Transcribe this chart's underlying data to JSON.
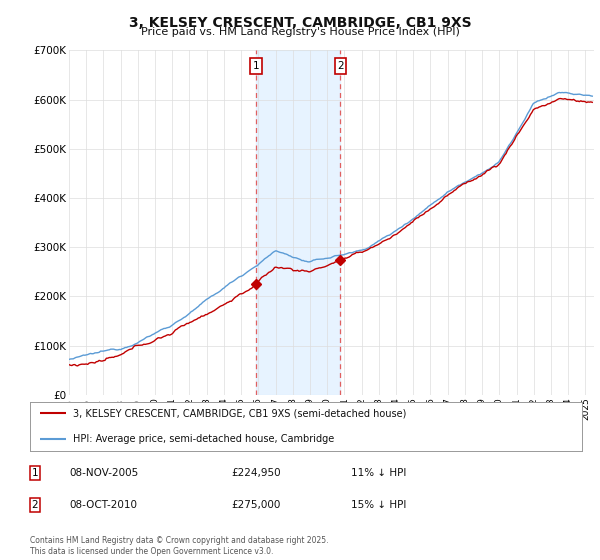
{
  "title": "3, KELSEY CRESCENT, CAMBRIDGE, CB1 9XS",
  "subtitle": "Price paid vs. HM Land Registry's House Price Index (HPI)",
  "ylim": [
    0,
    700000
  ],
  "yticks": [
    0,
    100000,
    200000,
    300000,
    400000,
    500000,
    600000,
    700000
  ],
  "ytick_labels": [
    "£0",
    "£100K",
    "£200K",
    "£300K",
    "£400K",
    "£500K",
    "£600K",
    "£700K"
  ],
  "xlim_start": 1995.0,
  "xlim_end": 2025.5,
  "hpi_color": "#5b9bd5",
  "price_color": "#c00000",
  "sale1_date": 2005.86,
  "sale1_price": 224950,
  "sale2_date": 2010.77,
  "sale2_price": 275000,
  "vline_color": "#e06060",
  "span_color": "#ddeeff",
  "legend_line1": "3, KELSEY CRESCENT, CAMBRIDGE, CB1 9XS (semi-detached house)",
  "legend_line2": "HPI: Average price, semi-detached house, Cambridge",
  "footnote": "Contains HM Land Registry data © Crown copyright and database right 2025.\nThis data is licensed under the Open Government Licence v3.0.",
  "background_color": "#ffffff",
  "grid_color": "#dddddd",
  "title_fontsize": 10,
  "subtitle_fontsize": 8
}
